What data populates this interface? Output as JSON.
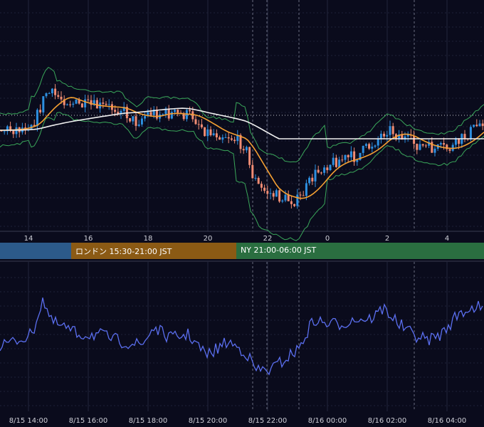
{
  "chart_data": [
    {
      "type": "candlestick",
      "panel": "price",
      "indicators": [
        "bollinger-bands",
        "moving-average-orange",
        "moving-average-white"
      ],
      "x_tick_labels": [
        "14",
        "16",
        "18",
        "20",
        "22",
        "0",
        "2",
        "4"
      ],
      "reference_line": "dotted horizontal",
      "grid": true,
      "colors": {
        "up": "#2d8fe0",
        "down": "#f08c74",
        "bollinger": "#3aa75a",
        "ma_orange": "#f5a033",
        "ma_white": "#f0f0f0"
      }
    },
    {
      "type": "line",
      "panel": "oscillator",
      "x_tick_labels": [
        "8/15 14:00",
        "8/15 16:00",
        "8/15 18:00",
        "8/15 20:00",
        "8/15 22:00",
        "8/16 00:00",
        "8/16 02:00",
        "8/16 04:00"
      ],
      "series_color": "#5b6ff0",
      "grid": true
    }
  ],
  "sessions": [
    {
      "label": "",
      "color": "#2c5a8a"
    },
    {
      "label": "ロンドン 15:30-21:00 JST",
      "color": "#8b5a14"
    },
    {
      "label": "NY 21:00-06:00 JST",
      "color": "#2a6e40"
    }
  ]
}
